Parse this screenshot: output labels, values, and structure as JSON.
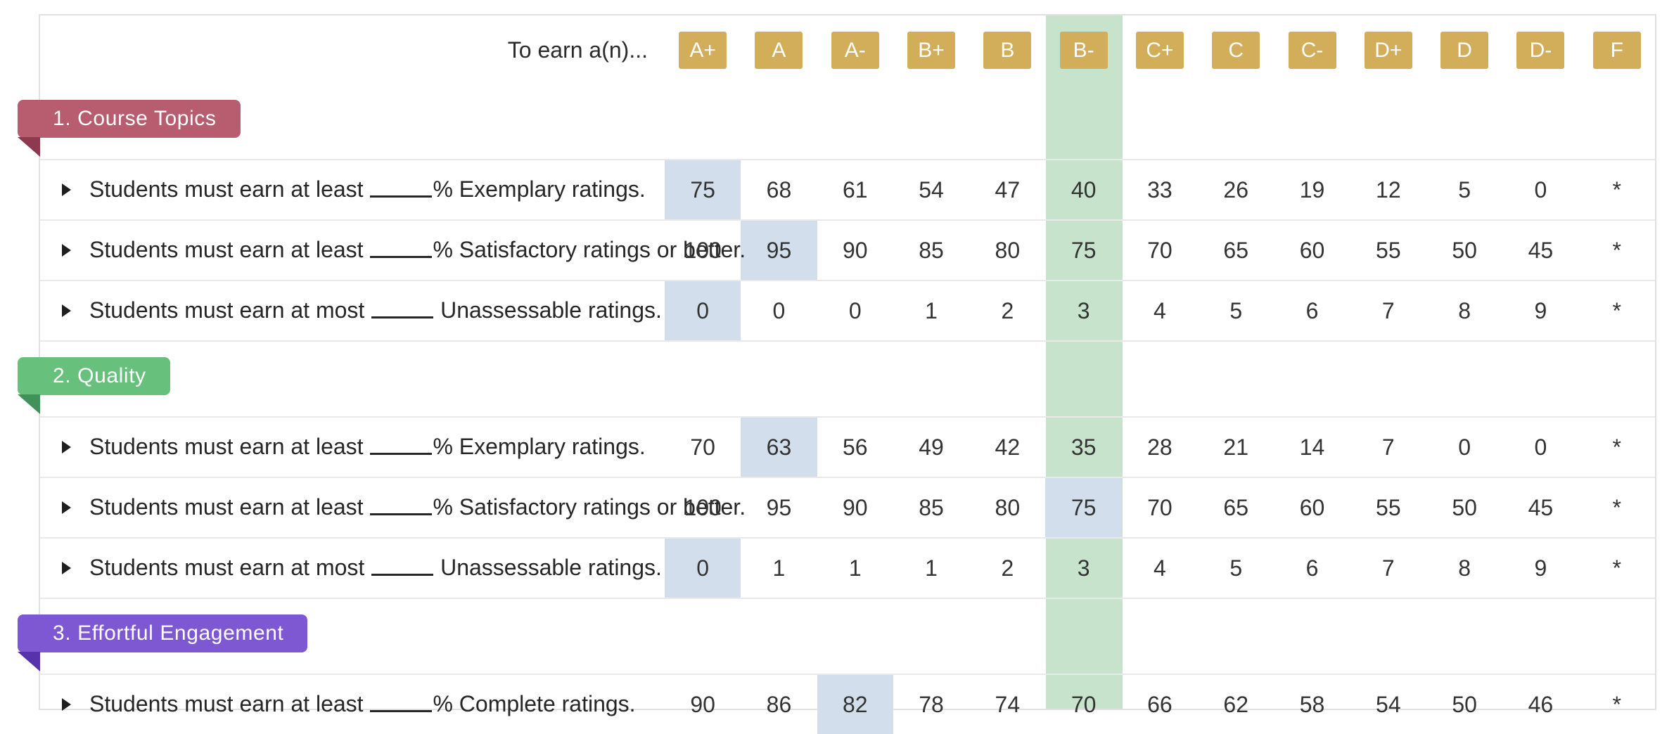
{
  "header": {
    "prompt": "To earn a(n)...",
    "grades": [
      "A+",
      "A",
      "A-",
      "B+",
      "B",
      "B-",
      "C+",
      "C",
      "C-",
      "D+",
      "D",
      "D-",
      "F"
    ],
    "highlighted_grade": "B-",
    "highlighted_grade_index": 5
  },
  "colors": {
    "grade_badge": "#d3ae5a",
    "highlight_column": "#c8e3cc",
    "selected_cell": "#d3deec",
    "row_border": "#e9e9e9"
  },
  "sections": [
    {
      "title": "1. Course Topics",
      "ribbon_color": "#b75d6f",
      "fold_color": "#8e3950",
      "rows": [
        {
          "label_before": "Students must earn at least",
          "label_after": "% Exemplary ratings.",
          "values": [
            "75",
            "68",
            "61",
            "54",
            "47",
            "40",
            "33",
            "26",
            "19",
            "12",
            "5",
            "0",
            "*"
          ],
          "selected_index": 0
        },
        {
          "label_before": "Students must earn at least",
          "label_after": "% Satisfactory ratings or better.",
          "values": [
            "100",
            "95",
            "90",
            "85",
            "80",
            "75",
            "70",
            "65",
            "60",
            "55",
            "50",
            "45",
            "*"
          ],
          "selected_index": 1
        },
        {
          "label_before": "Students must earn at most",
          "label_after": " Unassessable ratings.",
          "values": [
            "0",
            "0",
            "0",
            "1",
            "2",
            "3",
            "4",
            "5",
            "6",
            "7",
            "8",
            "9",
            "*"
          ],
          "selected_index": 0
        }
      ]
    },
    {
      "title": "2. Quality",
      "ribbon_color": "#67c07c",
      "fold_color": "#40915a",
      "rows": [
        {
          "label_before": "Students must earn at least",
          "label_after": "% Exemplary ratings.",
          "values": [
            "70",
            "63",
            "56",
            "49",
            "42",
            "35",
            "28",
            "21",
            "14",
            "7",
            "0",
            "0",
            "*"
          ],
          "selected_index": 1
        },
        {
          "label_before": "Students must earn at least",
          "label_after": "% Satisfactory ratings or better.",
          "values": [
            "100",
            "95",
            "90",
            "85",
            "80",
            "75",
            "70",
            "65",
            "60",
            "55",
            "50",
            "45",
            "*"
          ],
          "selected_index": 5
        },
        {
          "label_before": "Students must earn at most",
          "label_after": " Unassessable ratings.",
          "values": [
            "0",
            "1",
            "1",
            "1",
            "2",
            "3",
            "4",
            "5",
            "6",
            "7",
            "8",
            "9",
            "*"
          ],
          "selected_index": 0
        }
      ]
    },
    {
      "title": "3. Effortful Engagement",
      "ribbon_color": "#7e57d2",
      "fold_color": "#5633ab",
      "rows": [
        {
          "label_before": "Students must earn at least",
          "label_after": "% Complete ratings.",
          "values": [
            "90",
            "86",
            "82",
            "78",
            "74",
            "70",
            "66",
            "62",
            "58",
            "54",
            "50",
            "46",
            "*"
          ],
          "selected_index": 2
        }
      ]
    }
  ]
}
